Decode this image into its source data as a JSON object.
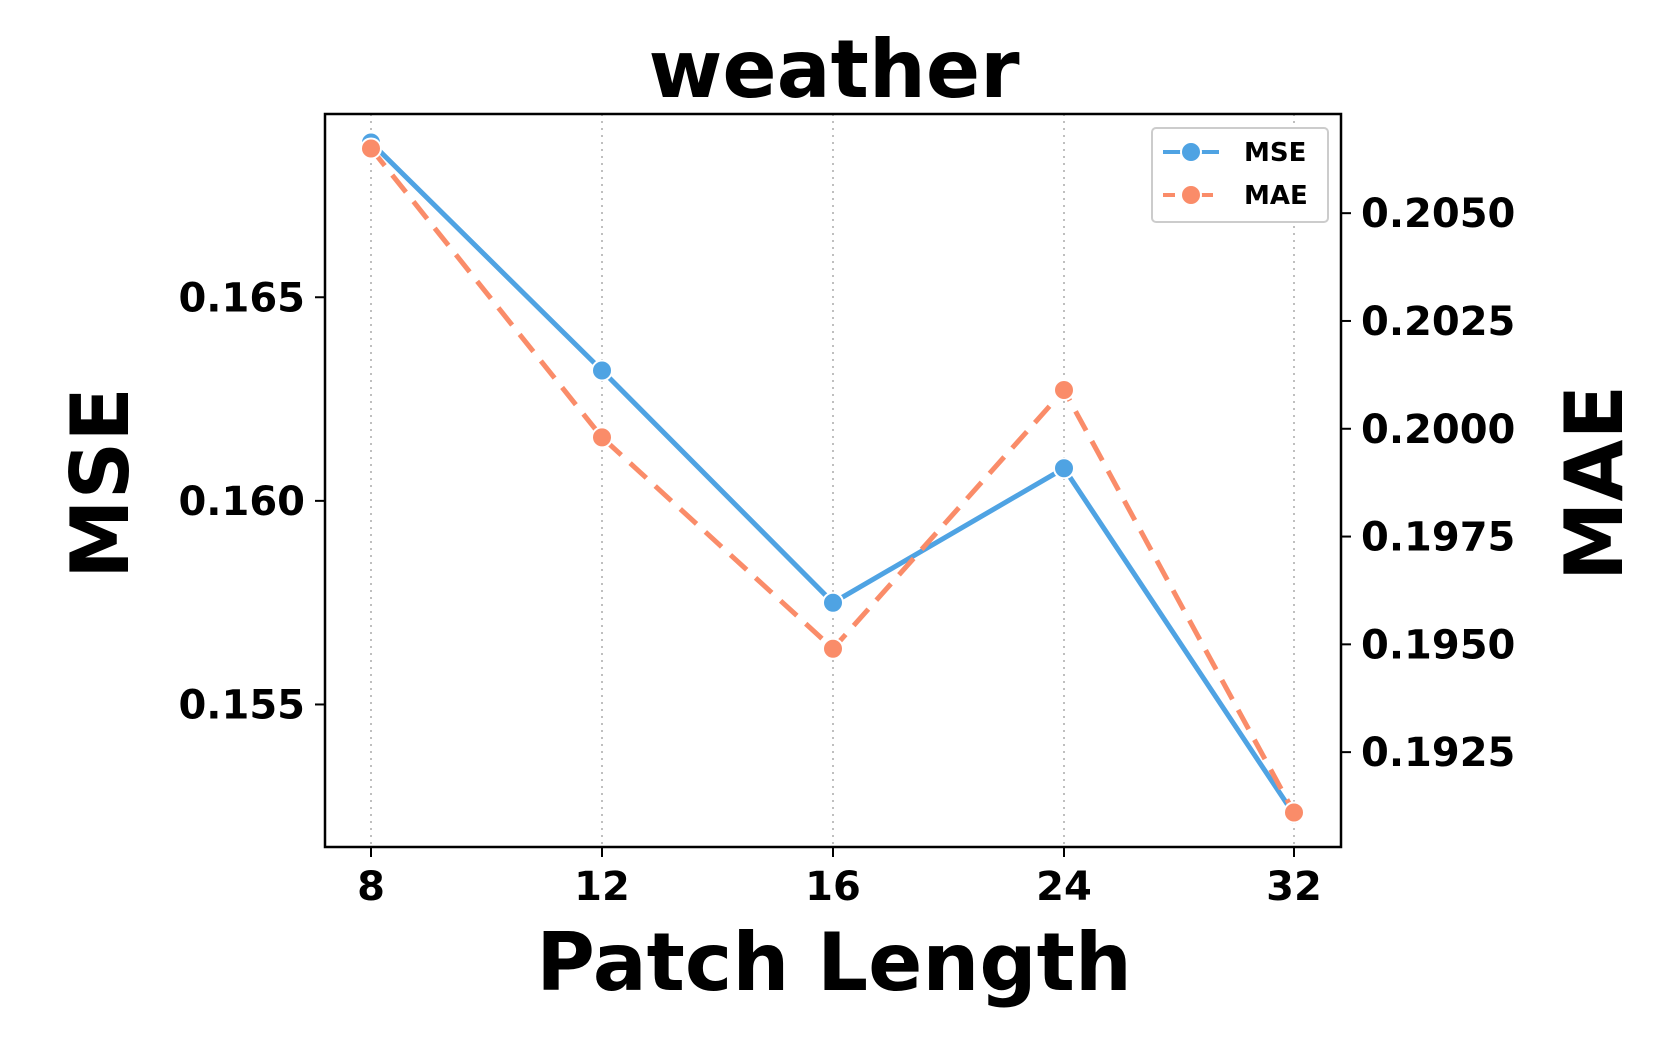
{
  "chart_data": {
    "type": "line",
    "title": "weather",
    "xlabel": "Patch Length",
    "ylabel_left": "MSE",
    "ylabel_right": "MAE",
    "categories": [
      "8",
      "12",
      "16",
      "24",
      "32"
    ],
    "series": [
      {
        "name": "MSE",
        "axis": "left",
        "values": [
          0.1688,
          0.1632,
          0.1575,
          0.1608,
          0.1523
        ],
        "color": "#4fa3e3",
        "line_style": "solid",
        "marker": "circle"
      },
      {
        "name": "MAE",
        "axis": "right",
        "values": [
          0.2065,
          0.1998,
          0.1949,
          0.2009,
          0.1911
        ],
        "color": "#fa8c69",
        "line_style": "dashed",
        "marker": "circle"
      }
    ],
    "y_left": {
      "lim": [
        0.1515,
        0.1695
      ],
      "ticks": [
        "0.155",
        "0.160",
        "0.165"
      ]
    },
    "y_right": {
      "lim": [
        0.1903,
        0.2073
      ],
      "ticks": [
        "0.1925",
        "0.1950",
        "0.1975",
        "0.2000",
        "0.2025",
        "0.2050"
      ]
    },
    "grid": "vertical-dotted",
    "legend_position": "top-right"
  }
}
